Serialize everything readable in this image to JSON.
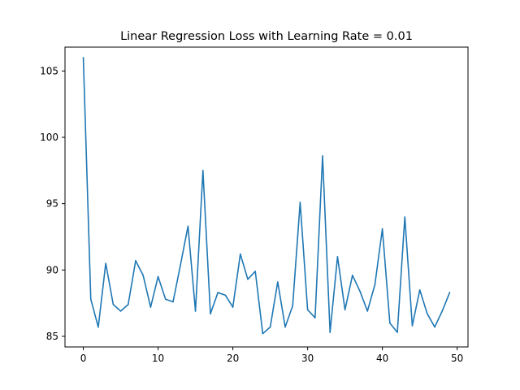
{
  "chart_data": {
    "type": "line",
    "title": "Linear Regression Loss with Learning Rate = 0.01",
    "xlabel": "",
    "ylabel": "",
    "xlim": [
      -2.45,
      51.45
    ],
    "ylim": [
      84.2,
      106.8
    ],
    "x_ticks": [
      0,
      10,
      20,
      30,
      40,
      50
    ],
    "y_ticks": [
      85,
      90,
      95,
      100,
      105
    ],
    "grid": false,
    "color": "#1f77b4",
    "series": [
      {
        "x": [
          0,
          1,
          2,
          3,
          4,
          5,
          6,
          7,
          8,
          9,
          10,
          11,
          12,
          13,
          14,
          15,
          16,
          17,
          18,
          19,
          20,
          21,
          22,
          23,
          24,
          25,
          26,
          27,
          28,
          29,
          30,
          31,
          32,
          33,
          34,
          35,
          36,
          37,
          38,
          39,
          40,
          41,
          42,
          43,
          44,
          45,
          46,
          47,
          48,
          49
        ],
        "values": [
          106.0,
          87.8,
          85.7,
          90.5,
          87.4,
          86.9,
          87.4,
          90.7,
          89.6,
          87.2,
          89.5,
          87.8,
          87.6,
          90.4,
          93.3,
          86.9,
          97.5,
          86.7,
          88.3,
          88.1,
          87.2,
          91.2,
          89.3,
          89.9,
          85.2,
          85.7,
          89.1,
          85.7,
          87.3,
          95.1,
          87.0,
          86.4,
          98.6,
          85.3,
          91.0,
          87.0,
          89.6,
          88.4,
          86.9,
          88.9,
          93.1,
          86.0,
          85.3,
          94.0,
          85.8,
          88.5,
          86.7,
          85.7,
          86.9,
          88.3
        ]
      }
    ]
  }
}
